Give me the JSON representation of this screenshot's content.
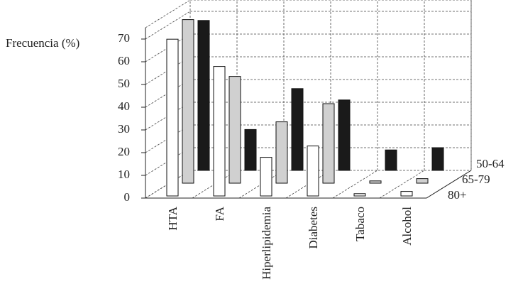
{
  "chart_data": {
    "type": "bar3d",
    "y_label": "Frecuencia (%)",
    "categories": [
      "HTA",
      "FA",
      "Hiperlipidemia",
      "Diabetes",
      "Tabaco",
      "Alcohol"
    ],
    "series": [
      {
        "name": "80+",
        "color": "#ffffff",
        "values": [
          69,
          57,
          17,
          22,
          1,
          2
        ]
      },
      {
        "name": "65-79",
        "color": "#d0d0d0",
        "values": [
          72,
          47,
          27,
          35,
          1,
          2
        ]
      },
      {
        "name": "50-64",
        "color": "#1a1a1a",
        "values": [
          66,
          18,
          36,
          31,
          9,
          10
        ]
      }
    ],
    "ylim": [
      0,
      75
    ],
    "yticks": [
      0,
      10,
      20,
      30,
      40,
      50,
      60,
      70
    ],
    "grid": true
  }
}
